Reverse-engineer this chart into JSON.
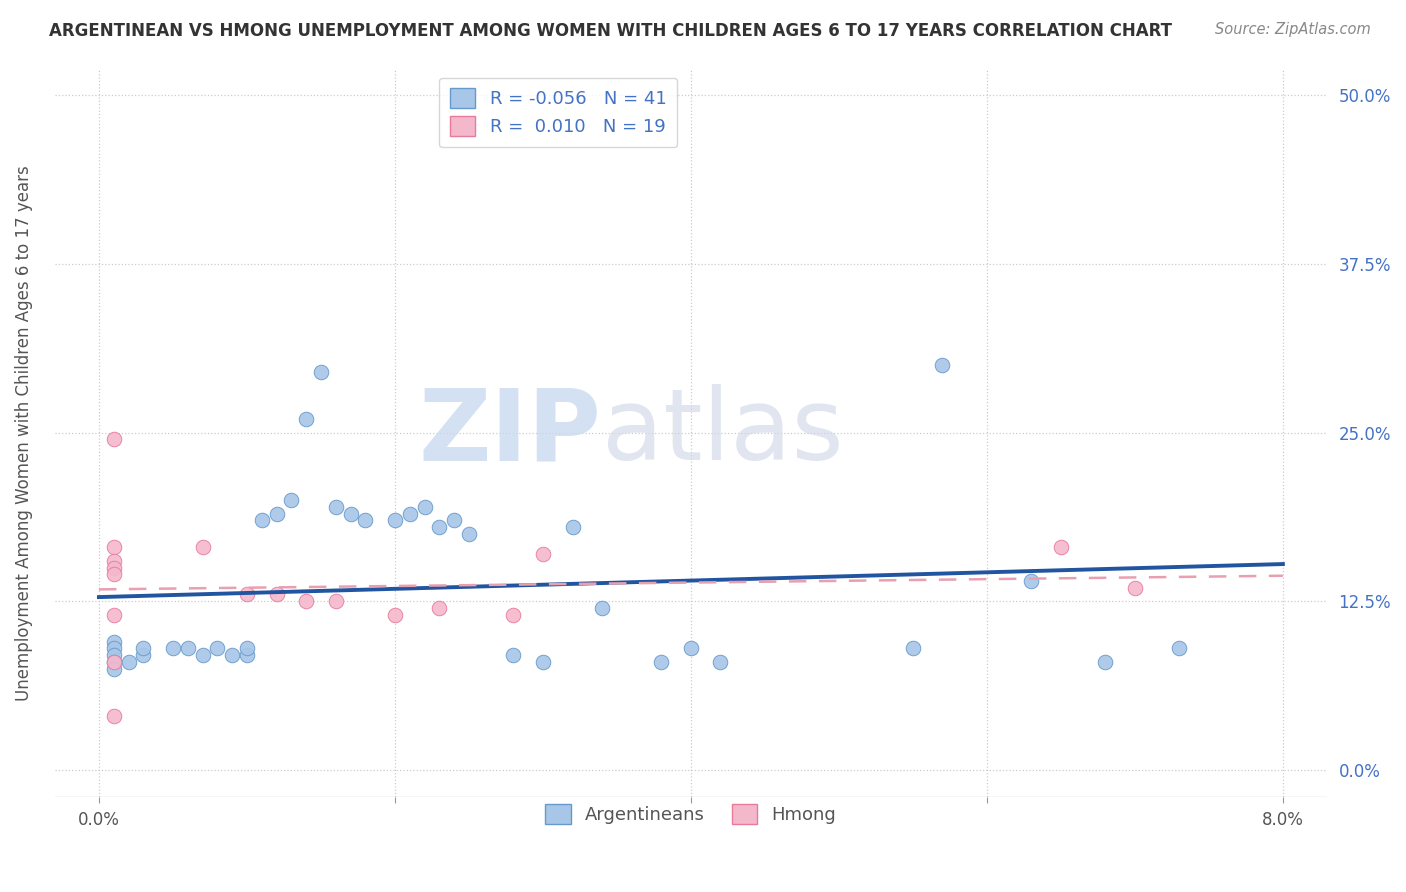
{
  "title": "ARGENTINEAN VS HMONG UNEMPLOYMENT AMONG WOMEN WITH CHILDREN AGES 6 TO 17 YEARS CORRELATION CHART",
  "source": "Source: ZipAtlas.com",
  "ylabel": "Unemployment Among Women with Children Ages 6 to 17 years",
  "y_tick_labels": [
    "0.0%",
    "12.5%",
    "25.0%",
    "37.5%",
    "50.0%"
  ],
  "y_tick_vals": [
    0.0,
    0.125,
    0.25,
    0.375,
    0.5
  ],
  "x_tick_vals": [
    0.0,
    0.02,
    0.04,
    0.06,
    0.08
  ],
  "xlim": [
    -0.003,
    0.083
  ],
  "ylim": [
    -0.02,
    0.52
  ],
  "legend_labels": [
    "Argentineans",
    "Hmong"
  ],
  "legend_R_arg": "-0.056",
  "legend_R_hmong": "0.010",
  "legend_N_arg": 41,
  "legend_N_hmong": 19,
  "argentinean_color": "#a8c6e8",
  "argentinean_edge": "#6699cc",
  "hmong_color": "#f4b8cc",
  "hmong_edge": "#e87a9a",
  "argentinean_line_color": "#2255a0",
  "hmong_line_color": "#e8a0b0",
  "background_color": "#ffffff",
  "grid_color": "#cccccc",
  "watermark_zip": "ZIP",
  "watermark_atlas": "atlas",
  "argentinean_x": [
    0.001,
    0.001,
    0.001,
    0.001,
    0.001,
    0.002,
    0.003,
    0.003,
    0.005,
    0.006,
    0.007,
    0.008,
    0.009,
    0.01,
    0.01,
    0.011,
    0.012,
    0.013,
    0.014,
    0.015,
    0.016,
    0.017,
    0.018,
    0.02,
    0.021,
    0.022,
    0.023,
    0.024,
    0.025,
    0.028,
    0.03,
    0.032,
    0.034,
    0.038,
    0.04,
    0.042,
    0.055,
    0.057,
    0.063,
    0.068,
    0.073
  ],
  "argentinean_y": [
    0.095,
    0.09,
    0.085,
    0.08,
    0.075,
    0.08,
    0.085,
    0.09,
    0.09,
    0.09,
    0.085,
    0.09,
    0.085,
    0.085,
    0.09,
    0.185,
    0.19,
    0.2,
    0.26,
    0.295,
    0.195,
    0.19,
    0.185,
    0.185,
    0.19,
    0.195,
    0.18,
    0.185,
    0.175,
    0.085,
    0.08,
    0.18,
    0.12,
    0.08,
    0.09,
    0.08,
    0.09,
    0.3,
    0.14,
    0.08,
    0.09
  ],
  "hmong_x": [
    0.001,
    0.001,
    0.001,
    0.001,
    0.001,
    0.001,
    0.001,
    0.001,
    0.007,
    0.01,
    0.012,
    0.014,
    0.016,
    0.02,
    0.023,
    0.028,
    0.03,
    0.065,
    0.07
  ],
  "hmong_y": [
    0.245,
    0.165,
    0.155,
    0.15,
    0.145,
    0.115,
    0.08,
    0.04,
    0.165,
    0.13,
    0.13,
    0.125,
    0.125,
    0.115,
    0.12,
    0.115,
    0.16,
    0.165,
    0.135
  ]
}
